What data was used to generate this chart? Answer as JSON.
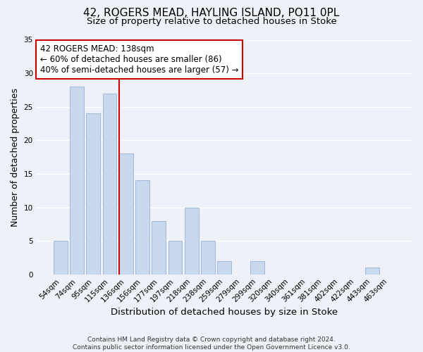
{
  "title": "42, ROGERS MEAD, HAYLING ISLAND, PO11 0PL",
  "subtitle": "Size of property relative to detached houses in Stoke",
  "xlabel": "Distribution of detached houses by size in Stoke",
  "ylabel": "Number of detached properties",
  "bar_labels": [
    "54sqm",
    "74sqm",
    "95sqm",
    "115sqm",
    "136sqm",
    "156sqm",
    "177sqm",
    "197sqm",
    "218sqm",
    "238sqm",
    "259sqm",
    "279sqm",
    "299sqm",
    "320sqm",
    "340sqm",
    "361sqm",
    "381sqm",
    "402sqm",
    "422sqm",
    "443sqm",
    "463sqm"
  ],
  "bar_values": [
    5,
    28,
    24,
    27,
    18,
    14,
    8,
    5,
    10,
    5,
    2,
    0,
    2,
    0,
    0,
    0,
    0,
    0,
    0,
    1,
    0
  ],
  "bar_color": "#c8d9ee",
  "bar_edge_color": "#a0b8d8",
  "highlight_line_color": "#cc0000",
  "highlight_line_index": 4,
  "ylim": [
    0,
    35
  ],
  "yticks": [
    0,
    5,
    10,
    15,
    20,
    25,
    30,
    35
  ],
  "annotation_title": "42 ROGERS MEAD: 138sqm",
  "annotation_line1": "← 60% of detached houses are smaller (86)",
  "annotation_line2": "40% of semi-detached houses are larger (57) →",
  "footer1": "Contains HM Land Registry data © Crown copyright and database right 2024.",
  "footer2": "Contains public sector information licensed under the Open Government Licence v3.0.",
  "background_color": "#eef2f8",
  "grid_color": "#ffffff",
  "title_fontsize": 11,
  "subtitle_fontsize": 9.5,
  "xlabel_fontsize": 9.5,
  "ylabel_fontsize": 9,
  "tick_fontsize": 7.5,
  "annotation_fontsize": 8.5,
  "footer_fontsize": 6.5
}
